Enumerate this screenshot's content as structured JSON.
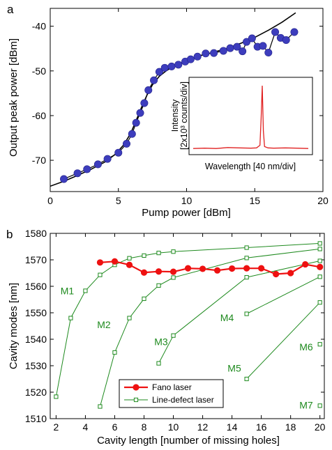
{
  "chart_data": [
    {
      "panel_label": "a",
      "type": "scatter",
      "xlabel": "Pump power [dBm]",
      "ylabel": "Output peak power [dBm]",
      "xlim": [
        0,
        20
      ],
      "ylim": [
        -77,
        -36
      ],
      "xticks": [
        0,
        5,
        10,
        15,
        20
      ],
      "yticks": [
        -70,
        -60,
        -50,
        -40
      ],
      "colors": {
        "points": "#3d3dbd",
        "fit": "#000000"
      },
      "series": [
        {
          "kind": "scatter",
          "x": [
            1.0,
            2.0,
            2.7,
            3.5,
            4.2,
            5.0,
            5.6,
            6.0,
            6.3,
            6.6,
            6.9,
            7.2,
            7.6,
            8.0,
            8.4,
            8.9,
            9.4,
            9.9,
            10.3,
            10.8,
            11.4,
            12.0,
            12.7,
            13.2,
            13.7,
            14.1,
            14.4,
            14.8,
            15.2,
            15.6,
            16.0,
            16.5,
            16.9,
            17.3,
            17.9
          ],
          "y": [
            -74.2,
            -72.9,
            -72.0,
            -70.9,
            -69.7,
            -68.3,
            -66.3,
            -64.1,
            -61.6,
            -59.4,
            -57.2,
            -54.3,
            -52.1,
            -50.2,
            -49.3,
            -49.0,
            -48.6,
            -47.9,
            -47.4,
            -46.8,
            -46.1,
            -46.0,
            -45.5,
            -44.9,
            -44.6,
            -45.6,
            -43.5,
            -42.7,
            -44.6,
            -44.4,
            -45.9,
            -41.3,
            -42.6,
            -43.1,
            -41.3
          ]
        },
        {
          "kind": "line",
          "x": [
            0,
            1,
            2,
            3,
            4,
            4.8,
            5.4,
            5.9,
            6.3,
            6.7,
            7.1,
            7.5,
            8.0,
            8.5,
            9.0,
            10.0,
            11.0,
            12.0,
            13.0,
            14.0,
            15.0,
            16.0,
            17.0,
            18.0
          ],
          "y": [
            -75.8,
            -74.7,
            -73.4,
            -72.0,
            -70.4,
            -68.6,
            -66.5,
            -64.0,
            -61.1,
            -58.1,
            -55.4,
            -53.1,
            -51.2,
            -50.0,
            -49.0,
            -47.8,
            -46.6,
            -45.8,
            -44.9,
            -43.8,
            -42.5,
            -40.9,
            -39.1,
            -37.0
          ]
        }
      ],
      "inset": {
        "xlabel": "Wavelength [40 nm/div]",
        "ylabel_line1": "Intensity",
        "ylabel_line2": "[2x10³ counts/div]",
        "color": "#e02020",
        "spectrum_x": [
          0,
          10,
          20,
          30,
          40,
          50,
          55,
          58,
          59,
          60,
          61,
          62,
          65,
          70,
          80,
          90,
          100
        ],
        "spectrum_y": [
          0.03,
          0.035,
          0.03,
          0.045,
          0.04,
          0.035,
          0.04,
          0.08,
          0.5,
          1.0,
          0.3,
          0.06,
          0.04,
          0.035,
          0.04,
          0.035,
          0.03
        ]
      }
    },
    {
      "panel_label": "b",
      "type": "line",
      "xlabel": "Cavity length [number of missing holes]",
      "ylabel": "Cavity modes [nm]",
      "xlim": [
        1.6,
        20.3
      ],
      "ylim": [
        1510,
        1580
      ],
      "xticks": [
        2,
        4,
        6,
        8,
        10,
        12,
        14,
        16,
        18,
        20
      ],
      "yticks": [
        1510,
        1520,
        1530,
        1540,
        1550,
        1560,
        1570,
        1580
      ],
      "legend": {
        "position": "bottom-left",
        "fano": "Fano laser",
        "line_defect": "Line-defect laser"
      },
      "colors": {
        "fano": "#ee1111",
        "line_defect": "#1e8a1e"
      },
      "fano": {
        "x": [
          5,
          6,
          7,
          8,
          9,
          10,
          11,
          12,
          13,
          14,
          15,
          16,
          17,
          18,
          19,
          20
        ],
        "y": [
          1569.0,
          1569.4,
          1568.1,
          1565.2,
          1565.6,
          1565.5,
          1566.8,
          1566.6,
          1566.0,
          1566.7,
          1566.8,
          1566.8,
          1564.6,
          1565.0,
          1568.3,
          1567.3
        ]
      },
      "line_defect": [
        {
          "label": "M1",
          "x": [
            2,
            3,
            4,
            5,
            6,
            7,
            8,
            9,
            10,
            15,
            20
          ],
          "y": [
            1518.3,
            1548.0,
            1558.3,
            1564.3,
            1568.1,
            1570.6,
            1571.6,
            1572.6,
            1573.1,
            1574.6,
            1576.2
          ]
        },
        {
          "label": "M2",
          "x": [
            5,
            6,
            7,
            8,
            9,
            10,
            15,
            20
          ],
          "y": [
            1514.6,
            1535.0,
            1548.0,
            1555.3,
            1560.3,
            1563.3,
            1570.7,
            1574.1
          ]
        },
        {
          "label": "M3",
          "x": [
            9,
            10,
            15,
            20
          ],
          "y": [
            1530.9,
            1541.4,
            1563.4,
            1569.6
          ]
        },
        {
          "label": "M4",
          "x": [
            15,
            20
          ],
          "y": [
            1549.6,
            1563.6
          ]
        },
        {
          "label": "M5",
          "x": [
            15,
            20
          ],
          "y": [
            1525.0,
            1553.9
          ]
        },
        {
          "label": "M6",
          "x": [
            20
          ],
          "y": [
            1538.1
          ]
        },
        {
          "label": "M7",
          "x": [
            20
          ],
          "y": [
            1514.9
          ]
        }
      ]
    }
  ]
}
